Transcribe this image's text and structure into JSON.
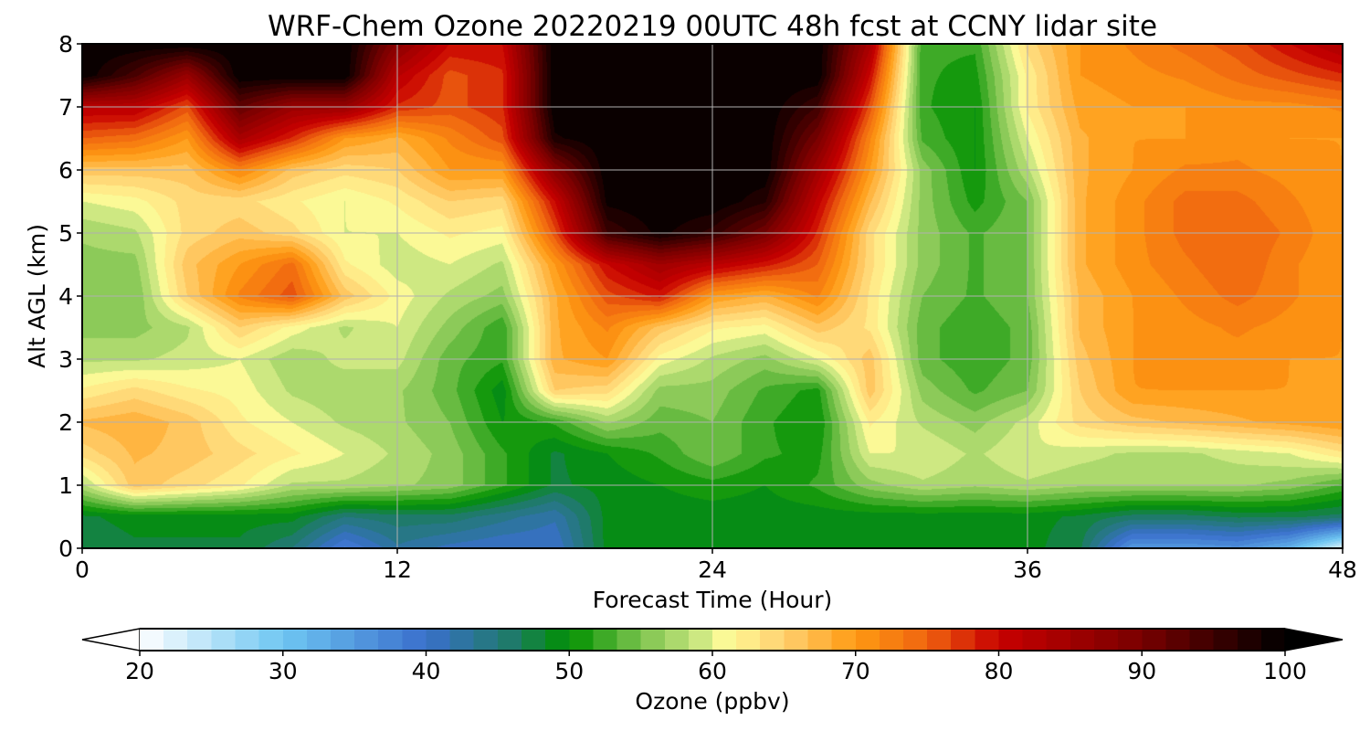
{
  "chart_data": {
    "type": "heatmap",
    "title": "WRF-Chem Ozone  20220219 00UTC 48h fcst at CCNY lidar site",
    "xlabel": "Forecast Time (Hour)",
    "ylabel": "Alt AGL (km)",
    "xlim": [
      0,
      48
    ],
    "ylim": [
      0,
      8
    ],
    "xticks": [
      "0",
      "12",
      "24",
      "36",
      "48"
    ],
    "yticks": [
      "0",
      "1",
      "2",
      "3",
      "4",
      "5",
      "6",
      "7",
      "8"
    ],
    "grid": true,
    "colorbar": {
      "label": "Ozone  (ppbv)",
      "range": [
        20,
        100
      ],
      "ticks": [
        "20",
        "30",
        "40",
        "50",
        "60",
        "70",
        "80",
        "90",
        "100"
      ],
      "extend": "both",
      "stops": [
        {
          "v": 20,
          "c": "#ffffff"
        },
        {
          "v": 30,
          "c": "#6ec6f2"
        },
        {
          "v": 40,
          "c": "#3a6fcc"
        },
        {
          "v": 46,
          "c": "#1e7a68"
        },
        {
          "v": 50,
          "c": "#009100"
        },
        {
          "v": 55,
          "c": "#7cc34e"
        },
        {
          "v": 59,
          "c": "#c9e680"
        },
        {
          "v": 61,
          "c": "#fffb98"
        },
        {
          "v": 65,
          "c": "#ffd070"
        },
        {
          "v": 70,
          "c": "#ff9a12"
        },
        {
          "v": 75,
          "c": "#ef6410"
        },
        {
          "v": 80,
          "c": "#c80000"
        },
        {
          "v": 90,
          "c": "#780000"
        },
        {
          "v": 100,
          "c": "#000000"
        }
      ]
    },
    "x": [
      0,
      2,
      4,
      6,
      8,
      10,
      12,
      14,
      16,
      18,
      20,
      22,
      24,
      26,
      28,
      30,
      32,
      34,
      36,
      38,
      40,
      42,
      44,
      46,
      48
    ],
    "y": [
      0,
      0.5,
      1,
      1.5,
      2,
      2.5,
      3,
      3.5,
      4,
      4.5,
      5,
      5.5,
      6,
      6.5,
      7,
      7.5,
      8
    ],
    "z": [
      [
        47,
        48,
        48,
        48,
        45,
        38,
        43,
        41,
        40,
        40,
        49,
        49,
        49,
        49,
        49,
        49,
        49,
        49,
        49,
        47,
        35,
        35,
        36,
        32,
        22
      ],
      [
        48,
        49,
        49,
        49,
        49,
        45,
        46,
        46,
        44,
        42,
        49,
        49,
        49,
        49,
        49,
        49,
        49,
        49,
        49,
        48,
        46,
        46,
        47,
        47,
        46
      ],
      [
        58,
        66,
        64,
        62,
        58,
        58,
        57,
        56,
        52,
        48,
        49,
        50,
        51,
        50,
        52,
        56,
        58,
        57,
        58,
        57,
        57,
        57,
        57,
        56,
        53
      ],
      [
        64,
        67,
        66,
        64,
        62,
        60,
        58,
        56,
        52,
        48,
        50,
        52,
        55,
        52,
        51,
        60,
        60,
        58,
        60,
        59,
        58,
        58,
        59,
        60,
        63
      ],
      [
        67,
        68,
        66,
        62,
        60,
        58,
        57,
        55,
        50,
        52,
        57,
        54,
        55,
        52,
        50,
        62,
        58,
        56,
        59,
        64,
        66,
        67,
        68,
        69,
        70
      ],
      [
        62,
        64,
        62,
        61,
        58,
        57,
        57,
        54,
        49,
        65,
        64,
        56,
        56,
        53,
        51,
        66,
        56,
        53,
        55,
        65,
        70,
        70,
        70,
        70,
        70
      ],
      [
        58,
        58,
        59,
        60,
        57,
        59,
        59,
        54,
        52,
        68,
        70,
        61,
        58,
        56,
        60,
        66,
        54,
        52,
        54,
        66,
        70,
        71,
        71,
        70,
        70
      ],
      [
        56,
        56,
        58,
        65,
        61,
        58,
        60,
        56,
        52,
        68,
        72,
        66,
        62,
        61,
        66,
        63,
        54,
        52,
        54,
        67,
        70,
        71,
        72,
        71,
        70
      ],
      [
        56,
        55,
        65,
        72,
        76,
        66,
        61,
        58,
        56,
        68,
        76,
        79,
        70,
        68,
        72,
        63,
        55,
        53,
        55,
        67,
        70,
        72,
        74,
        72,
        70
      ],
      [
        56,
        56,
        66,
        70,
        74,
        62,
        59,
        60,
        58,
        70,
        80,
        85,
        82,
        79,
        75,
        64,
        56,
        53,
        55,
        68,
        71,
        73,
        75,
        72,
        70
      ],
      [
        57,
        58,
        64,
        66,
        64,
        60,
        60,
        62,
        61,
        76,
        95,
        99,
        96,
        90,
        78,
        64,
        56,
        53,
        55,
        68,
        71,
        74,
        75,
        73,
        70
      ],
      [
        60,
        61,
        64,
        64,
        62,
        60,
        62,
        65,
        64,
        80,
        99,
        100,
        100,
        97,
        81,
        67,
        56,
        51,
        55,
        68,
        71,
        74,
        74,
        72,
        70
      ],
      [
        66,
        66,
        66,
        72,
        66,
        64,
        65,
        70,
        70,
        88,
        100,
        100,
        100,
        100,
        85,
        70,
        56,
        50,
        58,
        68,
        70,
        72,
        72,
        71,
        70
      ],
      [
        75,
        74,
        70,
        84,
        78,
        70,
        68,
        72,
        76,
        98,
        100,
        100,
        100,
        100,
        90,
        72,
        53,
        50,
        60,
        68,
        70,
        70,
        71,
        70,
        70
      ],
      [
        82,
        82,
        76,
        92,
        86,
        86,
        78,
        76,
        78,
        100,
        100,
        100,
        100,
        100,
        95,
        76,
        52,
        50,
        62,
        69,
        70,
        70,
        71,
        71,
        72
      ],
      [
        100,
        94,
        86,
        100,
        100,
        100,
        82,
        76,
        78,
        100,
        100,
        100,
        100,
        100,
        100,
        80,
        52,
        51,
        62,
        70,
        71,
        72,
        74,
        76,
        78
      ],
      [
        100,
        100,
        100,
        100,
        100,
        100,
        88,
        80,
        80,
        100,
        100,
        100,
        100,
        100,
        100,
        84,
        52,
        52,
        64,
        70,
        72,
        74,
        76,
        80,
        84
      ]
    ]
  }
}
